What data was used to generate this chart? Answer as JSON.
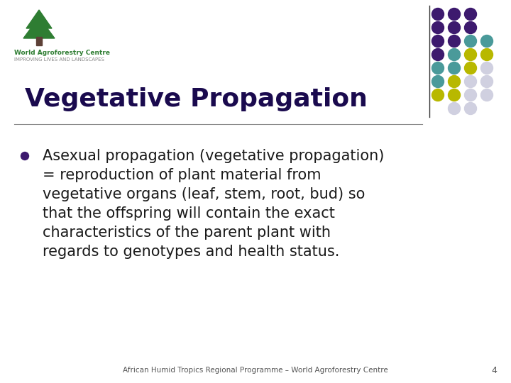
{
  "title": "Vegetative Propagation",
  "title_color": "#1a0a4e",
  "title_fontsize": 26,
  "title_bold": true,
  "bullet_lines": [
    "Asexual propagation (vegetative propagation)",
    "= reproduction of plant material from",
    "vegetative organs (leaf, stem, root, bud) so",
    "that the offspring will contain the exact",
    "characteristics of the parent plant with",
    "regards to genotypes and health status."
  ],
  "bullet_fontsize": 15,
  "footer_text": "African Humid Tropics Regional Programme – World Agroforestry Centre",
  "footer_fontsize": 7.5,
  "page_number": "4",
  "background_color": "#ffffff",
  "text_color": "#1a1a1a",
  "bullet_dot_color": "#3d1a6e",
  "logo_text1": "World Agroforestry Centre",
  "logo_text2": "IMPROVING LIVES AND LANDSCAPES",
  "dot_grid": {
    "colors": [
      [
        "#3d1a6e",
        "#3d1a6e",
        "#3d1a6e",
        "none"
      ],
      [
        "#3d1a6e",
        "#3d1a6e",
        "#3d1a6e",
        "none"
      ],
      [
        "#3d1a6e",
        "#3d1a6e",
        "#4a9a9a",
        "#4a9a9a"
      ],
      [
        "#3d1a6e",
        "#4a9a9a",
        "#b8b800",
        "#b8b800"
      ],
      [
        "#4a9a9a",
        "#4a9a9a",
        "#b8b800",
        "#d0d0e0"
      ],
      [
        "#4a9a9a",
        "#b8b800",
        "#d0d0e0",
        "#d0d0e0"
      ],
      [
        "#b8b800",
        "#b8b800",
        "#d0d0e0",
        "#d0d0e0"
      ],
      [
        "none",
        "#d0d0e0",
        "#d0d0e0",
        "none"
      ]
    ]
  }
}
